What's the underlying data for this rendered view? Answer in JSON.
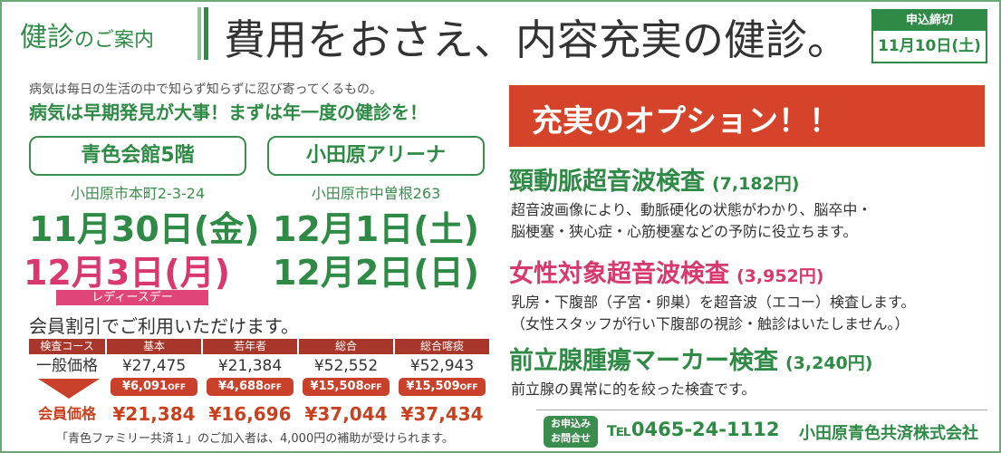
{
  "header": {
    "label_main": "健診",
    "label_sub": "のご案内",
    "title": "費用をおさえ、内容充実の健診。"
  },
  "deadline": {
    "label": "申込締切",
    "date": "11月10日(土)"
  },
  "intro": {
    "line1": "病気は毎日の生活の中で知らず知らずに忍び寄ってくるもの。",
    "line2": "病気は早期発見が大事！まずは年一度の健診を！"
  },
  "venues": [
    {
      "name": "青色会館5階",
      "address": "小田原市本町2-3-24",
      "dates": [
        "11月30日(金)",
        "12月3日(月)"
      ],
      "note": "レディースデー"
    },
    {
      "name": "小田原アリーナ",
      "address": "小田原市中曽根263",
      "dates": [
        "12月1日(土)",
        "12月2日(日)"
      ]
    }
  ],
  "discount": {
    "title": "会員割引でご利用いただけます。",
    "header": [
      "検査コース",
      "基本",
      "若年者",
      "総合",
      "総合喀痰"
    ],
    "regular": [
      "一般価格",
      "¥27,475",
      "¥21,384",
      "¥52,552",
      "¥52,943"
    ],
    "offs": [
      {
        "amount": "¥6,091",
        "suffix": "OFF"
      },
      {
        "amount": "¥4,688",
        "suffix": "OFF"
      },
      {
        "amount": "¥15,508",
        "suffix": "OFF"
      },
      {
        "amount": "¥15,509",
        "suffix": "OFF"
      }
    ],
    "member": [
      "会員価格",
      "¥21,384",
      "¥16,696",
      "¥37,044",
      "¥37,434"
    ],
    "note": "「青色ファミリー共済１」のご加入者は、4,000円の補助が受けられます。"
  },
  "options": {
    "title": "充実のオプション！！",
    "items": [
      {
        "name": "頸動脈超音波検査",
        "price": "(7,182円)",
        "desc": [
          "超音波画像により、動脈硬化の状態がわかり、脳卒中・",
          "脳梗塞・狭心症・心筋梗塞などの予防に役立ちます。"
        ]
      },
      {
        "name": "女性対象超音波検査",
        "price": "(3,952円)",
        "desc": [
          "乳房・下腹部（子宮・卵巣）を超音波（エコー）検査します。",
          "（女性スタッフが行い下腹部の視診・触診はいたしません。）"
        ]
      },
      {
        "name": "前立腺腫瘍マーカー検査",
        "price": "(3,240円)",
        "desc": [
          "前立腺の異常に的を絞った検査です。"
        ]
      }
    ]
  },
  "footer": {
    "contact": [
      "お申込み",
      "お問合せ"
    ],
    "tel": "℡0465-24-1112",
    "company": "小田原青色共済株式会社"
  }
}
